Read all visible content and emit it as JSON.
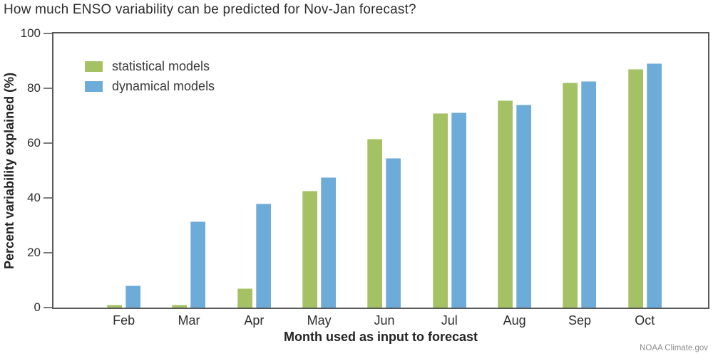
{
  "title": "How much ENSO variability can be predicted for Nov-Jan forecast?",
  "attribution": "NOAA Climate.gov",
  "colors": {
    "statistical": "#a4c164",
    "dynamical": "#6dacd8",
    "axis_border": "#58595b",
    "tick_mark": "#7b7b7b",
    "text": "#2d2d2d",
    "attribution_text": "#8d8d8d"
  },
  "chart_data": {
    "type": "bar",
    "title": "How much ENSO variability can be predicted for Nov-Jan forecast?",
    "xlabel": "Month used as input to forecast",
    "ylabel": "Percent variability explained (%)",
    "ylim": [
      0,
      100
    ],
    "yticks": [
      0,
      20,
      40,
      60,
      80,
      100
    ],
    "grid": false,
    "legend_position": "top-left-inside",
    "categories": [
      "Feb",
      "Mar",
      "Apr",
      "May",
      "Jun",
      "Jul",
      "Aug",
      "Sep",
      "Oct"
    ],
    "series": [
      {
        "name": "statistical models",
        "color": "#a4c164",
        "values": [
          1,
          1,
          7,
          42.5,
          61.5,
          70.8,
          75.5,
          82,
          87
        ]
      },
      {
        "name": "dynamical models",
        "color": "#6dacd8",
        "values": [
          8,
          31.5,
          38,
          47.5,
          54.5,
          71.2,
          74,
          82.5,
          89
        ]
      }
    ]
  }
}
